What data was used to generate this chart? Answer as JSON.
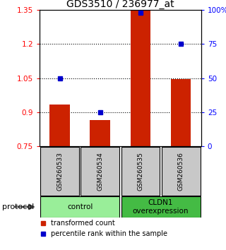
{
  "title": "GDS3510 / 236977_at",
  "samples": [
    "GSM260533",
    "GSM260534",
    "GSM260535",
    "GSM260536"
  ],
  "bar_values": [
    0.935,
    0.865,
    1.35,
    1.047
  ],
  "bar_baseline": 0.75,
  "percentile_values": [
    50,
    25,
    98,
    75
  ],
  "bar_color": "#cc2200",
  "dot_color": "#0000cc",
  "ylim_left": [
    0.75,
    1.35
  ],
  "ylim_right": [
    0,
    100
  ],
  "yticks_left": [
    0.75,
    0.9,
    1.05,
    1.2,
    1.35
  ],
  "yticks_right": [
    0,
    25,
    50,
    75,
    100
  ],
  "ytick_labels_right": [
    "0",
    "25",
    "50",
    "75",
    "100%"
  ],
  "dotted_lines": [
    0.9,
    1.05,
    1.2
  ],
  "groups": [
    {
      "label": "control",
      "samples": [
        0,
        1
      ],
      "color": "#99ee99"
    },
    {
      "label": "CLDN1\noverexpression",
      "samples": [
        2,
        3
      ],
      "color": "#44bb44"
    }
  ],
  "group_label": "protocol",
  "legend_bar_label": "transformed count",
  "legend_dot_label": "percentile rank within the sample",
  "title_fontsize": 10,
  "tick_fontsize": 7.5,
  "bar_width": 0.5,
  "background_color": "#ffffff",
  "plot_bg_color": "#ffffff",
  "sample_box_color": "#c8c8c8"
}
